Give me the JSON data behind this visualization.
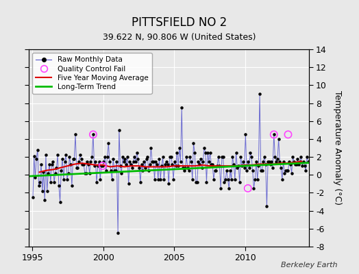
{
  "title": "PITTSFIELD NO 2",
  "subtitle": "39.622 N, 90.806 W (United States)",
  "ylabel": "Temperature Anomaly (°C)",
  "credit": "Berkeley Earth",
  "ylim": [
    -8,
    14
  ],
  "yticks": [
    -8,
    -6,
    -4,
    -2,
    0,
    2,
    4,
    6,
    8,
    10,
    12,
    14
  ],
  "xlim_start": 1994.75,
  "xlim_end": 2014.5,
  "xticks": [
    1995,
    2000,
    2005,
    2010
  ],
  "xticklabels": [
    "1995",
    "2000",
    "2005",
    "2010"
  ],
  "bg_color": "#e8e8e8",
  "plot_bg_color": "#e8e8e8",
  "grid_color": "#ffffff",
  "line_color": "#5555cc",
  "dot_color": "#000000",
  "ma_color": "#dd0000",
  "trend_color": "#00bb00",
  "qc_color": "#ff44ff",
  "raw_times": [
    1995.042,
    1995.125,
    1995.208,
    1995.292,
    1995.375,
    1995.458,
    1995.542,
    1995.625,
    1995.708,
    1995.792,
    1995.875,
    1995.958,
    1996.042,
    1996.125,
    1996.208,
    1996.292,
    1996.375,
    1996.458,
    1996.542,
    1996.625,
    1996.708,
    1996.792,
    1996.875,
    1996.958,
    1997.042,
    1997.125,
    1997.208,
    1997.292,
    1997.375,
    1997.458,
    1997.542,
    1997.625,
    1997.708,
    1997.792,
    1997.875,
    1997.958,
    1998.042,
    1998.125,
    1998.208,
    1998.292,
    1998.375,
    1998.458,
    1998.542,
    1998.625,
    1998.708,
    1998.792,
    1998.875,
    1998.958,
    1999.042,
    1999.125,
    1999.208,
    1999.292,
    1999.375,
    1999.458,
    1999.542,
    1999.625,
    1999.708,
    1999.792,
    1999.875,
    1999.958,
    2000.042,
    2000.125,
    2000.208,
    2000.292,
    2000.375,
    2000.458,
    2000.542,
    2000.625,
    2000.708,
    2000.792,
    2000.875,
    2000.958,
    2001.042,
    2001.125,
    2001.208,
    2001.292,
    2001.375,
    2001.458,
    2001.542,
    2001.625,
    2001.708,
    2001.792,
    2001.875,
    2001.958,
    2002.042,
    2002.125,
    2002.208,
    2002.292,
    2002.375,
    2002.458,
    2002.542,
    2002.625,
    2002.708,
    2002.792,
    2002.875,
    2002.958,
    2003.042,
    2003.125,
    2003.208,
    2003.292,
    2003.375,
    2003.458,
    2003.542,
    2003.625,
    2003.708,
    2003.792,
    2003.875,
    2003.958,
    2004.042,
    2004.125,
    2004.208,
    2004.292,
    2004.375,
    2004.458,
    2004.542,
    2004.625,
    2004.708,
    2004.792,
    2004.875,
    2004.958,
    2005.042,
    2005.125,
    2005.208,
    2005.292,
    2005.375,
    2005.458,
    2005.542,
    2005.625,
    2005.708,
    2005.792,
    2005.875,
    2005.958,
    2006.042,
    2006.125,
    2006.208,
    2006.292,
    2006.375,
    2006.458,
    2006.542,
    2006.625,
    2006.708,
    2006.792,
    2006.875,
    2006.958,
    2007.042,
    2007.125,
    2007.208,
    2007.292,
    2007.375,
    2007.458,
    2007.542,
    2007.625,
    2007.708,
    2007.792,
    2007.875,
    2007.958,
    2008.042,
    2008.125,
    2008.208,
    2008.292,
    2008.375,
    2008.458,
    2008.542,
    2008.625,
    2008.708,
    2008.792,
    2008.875,
    2008.958,
    2009.042,
    2009.125,
    2009.208,
    2009.292,
    2009.375,
    2009.458,
    2009.542,
    2009.625,
    2009.708,
    2009.792,
    2009.875,
    2009.958,
    2010.042,
    2010.125,
    2010.208,
    2010.292,
    2010.375,
    2010.458,
    2010.542,
    2010.625,
    2010.708,
    2010.792,
    2010.875,
    2010.958,
    2011.042,
    2011.125,
    2011.208,
    2011.292,
    2011.375,
    2011.458,
    2011.542,
    2011.625,
    2011.708,
    2011.792,
    2011.875,
    2011.958,
    2012.042,
    2012.125,
    2012.208,
    2012.292,
    2012.375,
    2012.458,
    2012.542,
    2012.625,
    2012.708,
    2012.792,
    2012.875,
    2012.958,
    2013.042,
    2013.125,
    2013.208,
    2013.292,
    2013.375,
    2013.458,
    2013.542,
    2013.625,
    2013.708,
    2013.792,
    2013.875,
    2013.958,
    2014.042,
    2014.125,
    2014.208,
    2014.292,
    2014.375,
    2014.458
  ],
  "raw_values": [
    -2.5,
    2.1,
    -0.3,
    1.8,
    2.8,
    -1.2,
    -0.8,
    1.2,
    -1.8,
    0.3,
    -2.8,
    2.2,
    -1.8,
    0.2,
    1.2,
    -0.8,
    1.2,
    1.5,
    -0.8,
    0.2,
    0.8,
    2.2,
    -1.2,
    -3.0,
    0.5,
    1.8,
    -0.5,
    1.5,
    2.2,
    -0.5,
    0.2,
    2.0,
    1.2,
    -1.2,
    1.8,
    1.8,
    4.5,
    0.8,
    0.8,
    1.5,
    2.2,
    1.8,
    1.2,
    1.2,
    0.2,
    0.2,
    1.5,
    1.2,
    0.2,
    1.5,
    2.0,
    4.5,
    1.0,
    1.5,
    -0.8,
    1.0,
    1.5,
    -0.5,
    1.0,
    1.0,
    1.5,
    2.0,
    0.5,
    2.0,
    3.5,
    1.5,
    0.5,
    -0.5,
    1.8,
    0.5,
    0.5,
    1.5,
    -6.5,
    5.0,
    1.0,
    0.2,
    2.0,
    1.5,
    1.8,
    1.2,
    2.0,
    -1.0,
    1.5,
    1.2,
    0.8,
    1.5,
    2.0,
    1.5,
    2.5,
    1.8,
    0.8,
    -0.8,
    1.2,
    0.5,
    1.5,
    0.8,
    1.8,
    2.0,
    0.5,
    1.2,
    3.0,
    1.5,
    1.5,
    -0.5,
    1.5,
    1.2,
    -0.5,
    1.8,
    -0.5,
    1.0,
    2.0,
    -0.5,
    1.2,
    1.5,
    1.2,
    -1.0,
    2.0,
    2.0,
    1.2,
    -0.5,
    1.5,
    1.0,
    2.5,
    1.0,
    3.0,
    1.5,
    7.5,
    0.8,
    0.5,
    0.8,
    2.0,
    0.8,
    0.5,
    2.0,
    1.5,
    -0.5,
    3.5,
    2.5,
    -0.8,
    -0.8,
    1.5,
    1.2,
    1.8,
    0.8,
    1.5,
    3.0,
    2.5,
    -0.8,
    2.5,
    1.5,
    2.5,
    1.2,
    1.2,
    -0.5,
    0.5,
    0.5,
    1.0,
    2.0,
    1.0,
    -1.5,
    2.0,
    2.0,
    -0.8,
    -0.5,
    0.5,
    -0.5,
    -1.5,
    0.5,
    -0.5,
    2.0,
    1.2,
    -0.5,
    2.5,
    0.8,
    1.0,
    -0.8,
    2.0,
    1.0,
    1.5,
    0.8,
    4.5,
    0.5,
    1.5,
    0.8,
    2.5,
    2.0,
    0.5,
    -1.5,
    -0.5,
    1.5,
    -0.5,
    1.0,
    9.0,
    0.5,
    0.5,
    1.5,
    2.0,
    1.2,
    -3.5,
    1.5,
    1.5,
    1.2,
    1.5,
    0.8,
    4.5,
    2.0,
    1.5,
    1.8,
    4.0,
    1.5,
    0.8,
    -0.5,
    1.5,
    0.2,
    0.5,
    0.5,
    0.5,
    1.5,
    1.2,
    0.2,
    2.0,
    1.5,
    1.2,
    1.2,
    1.8,
    1.2,
    1.5,
    2.0,
    1.0,
    1.5,
    1.0,
    0.5,
    2.0,
    1.5
  ],
  "qc_fail_times": [
    1999.292,
    1999.958,
    2010.208,
    2012.042,
    2013.042
  ],
  "qc_fail_values": [
    4.5,
    1.0,
    -1.5,
    4.5,
    4.5
  ],
  "trend_x": [
    1994.75,
    2014.5
  ],
  "trend_y": [
    -0.15,
    1.35
  ],
  "ma_times": [
    1995.5,
    1996.0,
    1996.5,
    1997.0,
    1997.5,
    1998.0,
    1998.5,
    1999.0,
    1999.5,
    2000.0,
    2000.5,
    2001.0,
    2001.5,
    2002.0,
    2002.5,
    2003.0,
    2003.5,
    2004.0,
    2004.5,
    2005.0,
    2005.5,
    2006.0,
    2006.5,
    2007.0,
    2007.5,
    2008.0,
    2008.5,
    2009.0,
    2009.5,
    2010.0,
    2010.5,
    2011.0,
    2011.5,
    2012.0,
    2012.5,
    2013.0,
    2013.5,
    2014.0
  ],
  "ma_values": [
    0.3,
    0.5,
    0.6,
    0.8,
    1.0,
    1.2,
    1.3,
    1.2,
    1.1,
    1.1,
    0.9,
    1.0,
    0.9,
    1.0,
    1.0,
    0.9,
    0.9,
    0.9,
    0.9,
    1.0,
    1.0,
    1.0,
    1.0,
    1.1,
    1.0,
    1.0,
    1.0,
    1.0,
    1.0,
    1.1,
    1.1,
    1.2,
    1.2,
    1.2,
    1.3,
    1.3,
    1.4,
    1.5
  ]
}
